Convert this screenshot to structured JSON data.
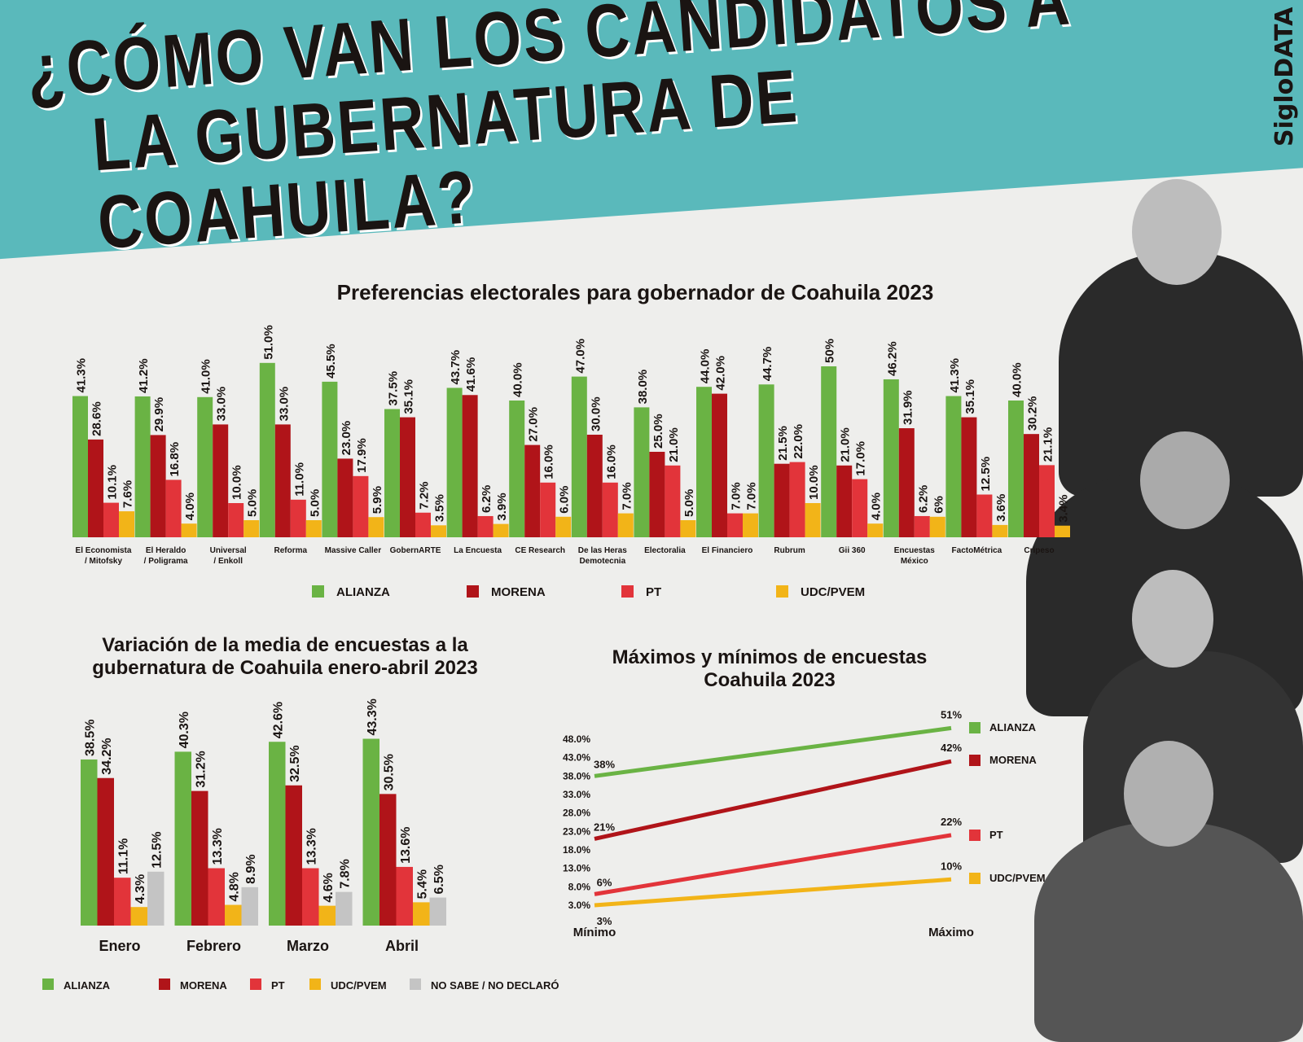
{
  "header": {
    "title_line1": "¿CÓMO VAN LOS CANDIDATOS A",
    "title_line2": "LA GUBERNATURA DE COAHUILA?",
    "brand": "SigloDATA",
    "banner_color": "#5ab9bb"
  },
  "colors": {
    "ALIANZA": "#6ab344",
    "MORENA": "#b01419",
    "PT": "#e2343a",
    "UDC/PVEM": "#f2b418",
    "NO SABE / NO DECLARÓ": "#c4c4c4"
  },
  "chart_data": [
    {
      "type": "bar",
      "title": "Preferencias electorales para gobernador de Coahuila 2023",
      "categories": [
        "El Economista / Mitofsky",
        "El Heraldo / Poligrama",
        "Universal / Enkoll",
        "Reforma",
        "Massive Caller",
        "GobernARTE",
        "La Encuesta",
        "CE Research",
        "De las Heras Demotecnia",
        "Electoralia",
        "El Financiero",
        "Rubrum",
        "Gii 360",
        "Encuestas México",
        "FactoMétrica",
        "Cripeso"
      ],
      "series": [
        {
          "name": "ALIANZA",
          "values": [
            41.3,
            41.2,
            41.0,
            51.0,
            45.5,
            37.5,
            43.7,
            40.0,
            47.0,
            38.0,
            44.0,
            44.7,
            50,
            46.2,
            41.3,
            40.0
          ],
          "labels": [
            "41.3%",
            "41.2%",
            "41.0%",
            "51.0%",
            "45.5%",
            "37.5%",
            "43.7%",
            "40.0%",
            "47.0%",
            "38.0%",
            "44.0%",
            "44.7%",
            "50%",
            "46.2%",
            "41.3%",
            "40.0%"
          ]
        },
        {
          "name": "MORENA",
          "values": [
            28.6,
            29.9,
            33.0,
            33.0,
            23.0,
            35.1,
            41.6,
            27.0,
            30.0,
            25.0,
            42.0,
            21.5,
            21.0,
            31.9,
            35.1,
            30.2
          ],
          "labels": [
            "28.6%",
            "29.9%",
            "33.0%",
            "33.0%",
            "23.0%",
            "35.1%",
            "41.6%",
            "27.0%",
            "30.0%",
            "25.0%",
            "42.0%",
            "21.5%",
            "21.0%",
            "31.9%",
            "35.1%",
            "30.2%"
          ]
        },
        {
          "name": "PT",
          "values": [
            10.1,
            16.8,
            10.0,
            11.0,
            17.9,
            7.2,
            6.2,
            16.0,
            16.0,
            21.0,
            7.0,
            22.0,
            17.0,
            6.2,
            12.5,
            21.1
          ],
          "labels": [
            "10.1%",
            "16.8%",
            "10.0%",
            "11.0%",
            "17.9%",
            "7.2%",
            "6.2%",
            "16.0%",
            "16.0%",
            "21.0%",
            "7.0%",
            "22.0%",
            "17.0%",
            "6.2%",
            "12.5%",
            "21.1%"
          ]
        },
        {
          "name": "UDC/PVEM",
          "values": [
            7.6,
            4.0,
            5.0,
            5.0,
            5.9,
            3.5,
            3.9,
            6.0,
            7.0,
            5.0,
            7.0,
            10.0,
            4.0,
            6,
            3.6,
            3.4
          ],
          "labels": [
            "7.6%",
            "4.0%",
            "5.0%",
            "5.0%",
            "5.9%",
            "3.5%",
            "3.9%",
            "6.0%",
            "7.0%",
            "5.0%",
            "7.0%",
            "10.0%",
            "4.0%",
            "6%",
            "3.6%",
            "3.4%"
          ]
        }
      ],
      "legend": "bottom"
    },
    {
      "type": "bar",
      "title": "Variación de la media de encuestas a la gubernatura de Coahuila enero-abril 2023",
      "categories": [
        "Enero",
        "Febrero",
        "Marzo",
        "Abril"
      ],
      "series": [
        {
          "name": "ALIANZA",
          "values": [
            38.5,
            40.3,
            42.6,
            43.3
          ]
        },
        {
          "name": "MORENA",
          "values": [
            34.2,
            31.2,
            32.5,
            30.5
          ]
        },
        {
          "name": "PT",
          "values": [
            11.1,
            13.3,
            13.3,
            13.6
          ]
        },
        {
          "name": "UDC/PVEM",
          "values": [
            4.3,
            4.8,
            4.6,
            5.4
          ]
        },
        {
          "name": "NO SABE / NO DECLARÓ",
          "values": [
            12.5,
            8.9,
            7.8,
            6.5
          ]
        }
      ],
      "legend": "bottom"
    },
    {
      "type": "line",
      "title": "Máximos y mínimos de encuestas Coahuila 2023",
      "categories": [
        "Mínimo",
        "Máximo"
      ],
      "yticks": [
        "48.0%",
        "43.0%",
        "38.0%",
        "33.0%",
        "28.0%",
        "23.0%",
        "18.0%",
        "13.0%",
        "8.0%",
        "3.0%"
      ],
      "ylim": [
        3,
        48
      ],
      "series": [
        {
          "name": "ALIANZA",
          "values": [
            38,
            51
          ],
          "labels": [
            "38%",
            "51%"
          ]
        },
        {
          "name": "MORENA",
          "values": [
            21,
            42
          ],
          "labels": [
            "21%",
            "42%"
          ]
        },
        {
          "name": "PT",
          "values": [
            6,
            22
          ],
          "labels": [
            "6%",
            "22%"
          ]
        },
        {
          "name": "UDC/PVEM",
          "values": [
            3,
            10
          ],
          "labels": [
            "3%",
            "10%"
          ]
        }
      ],
      "legend": "right"
    }
  ]
}
